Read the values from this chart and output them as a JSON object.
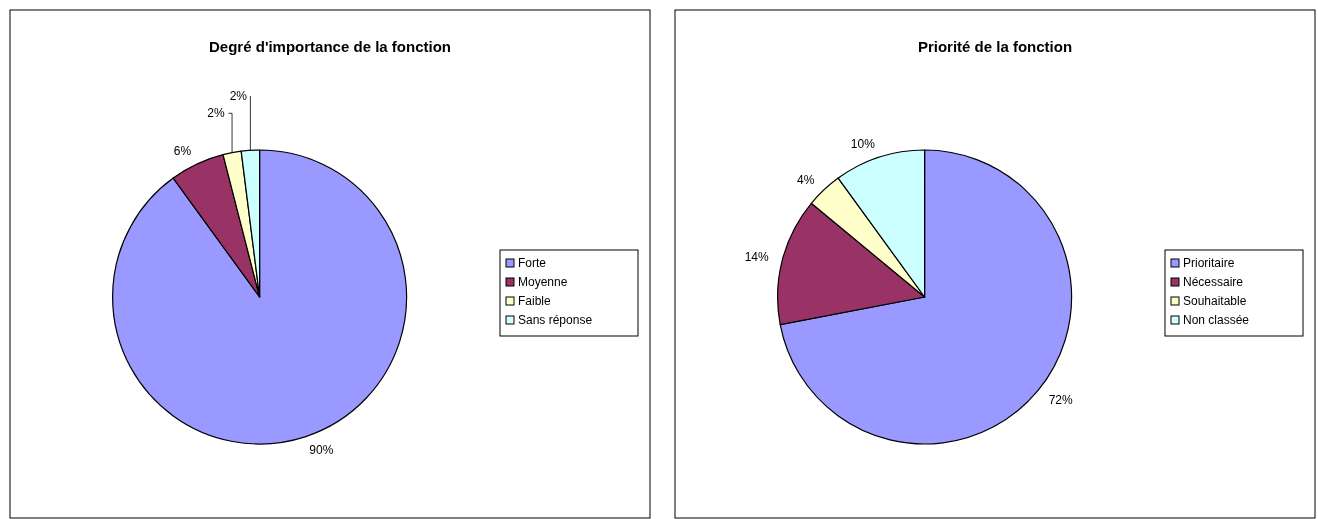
{
  "chart_data": [
    {
      "type": "pie",
      "title": "Degré d'importance de la fonction",
      "categories": [
        "Forte",
        "Moyenne",
        "Faible",
        "Sans réponse"
      ],
      "values": [
        90,
        6,
        2,
        2
      ],
      "value_labels": [
        "90%",
        "6%",
        "2%",
        "2%"
      ],
      "colors": [
        "#9999ff",
        "#993366",
        "#ffffcc",
        "#ccffff"
      ],
      "legend": "right"
    },
    {
      "type": "pie",
      "title": "Priorité de la fonction",
      "categories": [
        "Prioritaire",
        "Nécessaire",
        "Souhaitable",
        "Non classée"
      ],
      "values": [
        72,
        14,
        4,
        10
      ],
      "value_labels": [
        "72%",
        "14%",
        "4%",
        "10%"
      ],
      "colors": [
        "#9999ff",
        "#993366",
        "#ffffcc",
        "#ccffff"
      ],
      "legend": "right"
    }
  ]
}
